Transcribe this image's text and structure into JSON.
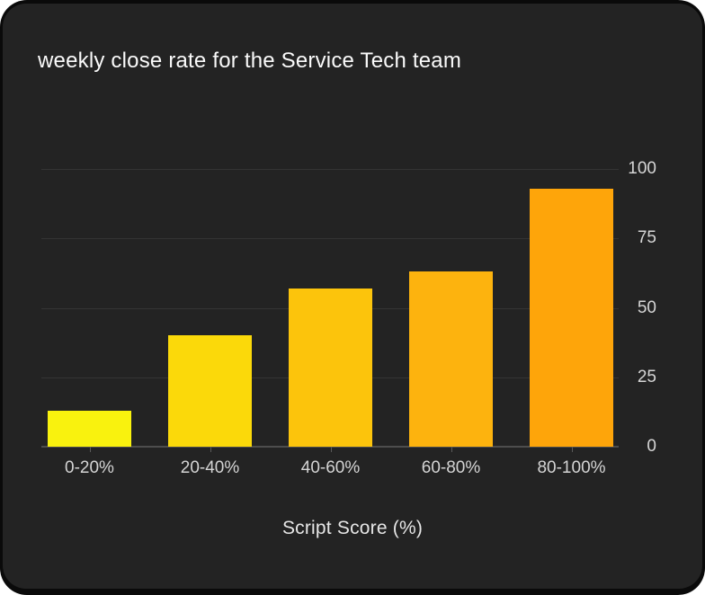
{
  "card": {
    "title": "weekly close rate for the Service Tech team"
  },
  "chart_data": {
    "type": "bar",
    "title": "weekly close rate for the Service Tech team",
    "categories": [
      "0-20%",
      "20-40%",
      "40-60%",
      "60-80%",
      "80-100%"
    ],
    "values": [
      13,
      40,
      57,
      63,
      93
    ],
    "xlabel": "Script Score (%)",
    "ylabel": "",
    "ylim": [
      0,
      100
    ],
    "yticks": [
      0,
      25,
      50,
      75,
      100
    ],
    "grid": true,
    "legend": false,
    "yaxis_position": "right",
    "bar_colors": [
      "#f9f20e",
      "#fbd90a",
      "#fcc40c",
      "#fdb30e",
      "#fea50a"
    ],
    "colors": {
      "frame_bg": "#0a0a0a",
      "card_bg": "#232323",
      "gridline": "#343434",
      "axis_line": "#4d4d4d",
      "tick_text": "#d6d6d6",
      "title_text": "#fafafa"
    }
  }
}
